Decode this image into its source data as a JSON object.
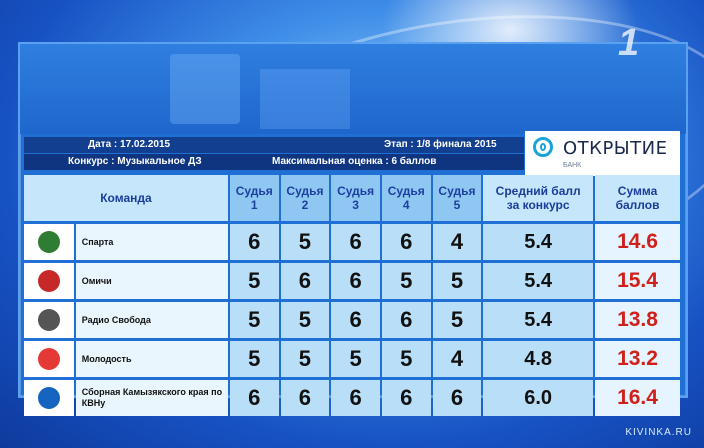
{
  "header": {
    "date": "Дата : 17.02.2015",
    "stage": "Этап : 1/8 финала 2015",
    "contest": "Конкурс : Музыкальное ДЗ",
    "max_score": "Максимальная оценка : 6 баллов"
  },
  "sponsor": {
    "name": "ОТКРЫТИЕ",
    "sub": "БАНК"
  },
  "channel_logo": "1",
  "table": {
    "columns": {
      "team": "Команда",
      "judges": [
        [
          "Судья",
          "1"
        ],
        [
          "Судья",
          "2"
        ],
        [
          "Судья",
          "3"
        ],
        [
          "Судья",
          "4"
        ],
        [
          "Судья",
          "5"
        ]
      ],
      "avg": [
        "Средний балл",
        "за конкурс"
      ],
      "sum": [
        "Сумма",
        "баллов"
      ]
    },
    "rows": [
      {
        "team": "Спарта",
        "emblem_color": "#2e7d32",
        "scores": [
          "6",
          "5",
          "6",
          "6",
          "4"
        ],
        "avg": "5.4",
        "sum": "14.6"
      },
      {
        "team": "Омичи",
        "emblem_color": "#c62828",
        "scores": [
          "5",
          "6",
          "6",
          "5",
          "5"
        ],
        "avg": "5.4",
        "sum": "15.4"
      },
      {
        "team": "Радио Свобода",
        "emblem_color": "#555555",
        "scores": [
          "5",
          "5",
          "6",
          "6",
          "5"
        ],
        "avg": "5.4",
        "sum": "13.8"
      },
      {
        "team": "Молодость",
        "emblem_color": "#e53935",
        "scores": [
          "5",
          "5",
          "5",
          "5",
          "4"
        ],
        "avg": "4.8",
        "sum": "13.2"
      },
      {
        "team": "Сборная Камызякского края по КВНу",
        "emblem_color": "#1565c0",
        "scores": [
          "6",
          "6",
          "6",
          "6",
          "6"
        ],
        "avg": "6.0",
        "sum": "16.4"
      }
    ]
  },
  "watermark": "KIVINKA.RU"
}
